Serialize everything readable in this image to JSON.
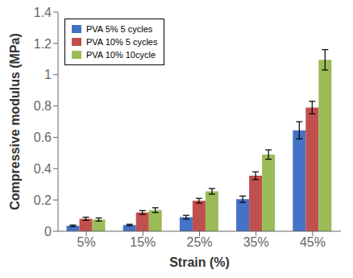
{
  "chart_data": {
    "type": "bar",
    "categories": [
      "5%",
      "15%",
      "25%",
      "35%",
      "45%"
    ],
    "series": [
      {
        "name": "PVA 5% 5 cycles",
        "color": "#4472C4",
        "values": [
          0.035,
          0.04,
          0.09,
          0.205,
          0.645
        ],
        "errors": [
          0.005,
          0.005,
          0.012,
          0.02,
          0.055
        ]
      },
      {
        "name": "PVA 10% 5 cycles",
        "color": "#C0504D",
        "values": [
          0.08,
          0.12,
          0.195,
          0.355,
          0.79
        ],
        "errors": [
          0.01,
          0.012,
          0.015,
          0.025,
          0.04
        ]
      },
      {
        "name": "PVA 10% 10cycle",
        "color": "#9BBB59",
        "values": [
          0.075,
          0.135,
          0.255,
          0.49,
          1.095
        ],
        "errors": [
          0.01,
          0.015,
          0.018,
          0.03,
          0.065
        ]
      }
    ],
    "xlabel": "Strain (%)",
    "ylabel": "Compressive modulus (MPa)",
    "ylim": [
      0,
      1.4
    ],
    "yticks": [
      0,
      0.2,
      0.4,
      0.6,
      0.8,
      1,
      1.2,
      1.4
    ],
    "legend": "upper left",
    "grid": false
  }
}
